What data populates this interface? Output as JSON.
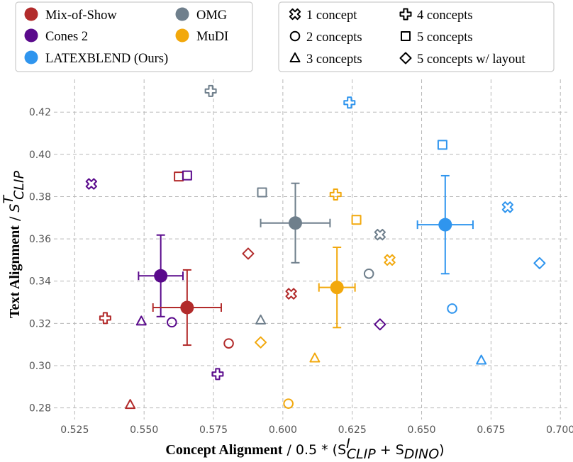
{
  "chart_data": {
    "type": "scatter",
    "xlabel_bold": "Concept Alignment",
    "xlabel_rest": "0.5 * (S",
    "xlabel_sup": "I",
    "xlabel_sub1": "CLIP",
    "xlabel_mid": " + S",
    "xlabel_sub2": "DINO",
    "xlabel_end": ")",
    "ylabel_bold": "Text Alignment",
    "ylabel_rest": "S",
    "ylabel_sup": "T",
    "ylabel_sub": "CLIP",
    "xlim": [
      0.5175,
      0.7025
    ],
    "ylim": [
      0.2745,
      0.4355
    ],
    "xticks": [
      0.525,
      0.55,
      0.575,
      0.6,
      0.625,
      0.65,
      0.675,
      0.7
    ],
    "yticks": [
      0.28,
      0.3,
      0.32,
      0.34,
      0.36,
      0.38,
      0.4,
      0.42
    ],
    "grid": true,
    "methods": [
      {
        "key": "mixofshow",
        "name": "Mix-of-Show",
        "color": "#b22b2b"
      },
      {
        "key": "cones2",
        "name": "Cones 2",
        "color": "#5a0a8c"
      },
      {
        "key": "latexblend",
        "name": "LATEXBLEND",
        "name_suffix": "(Ours)",
        "color": "#2f95ee"
      },
      {
        "key": "omg",
        "name": "OMG",
        "color": "#6f7f8c"
      },
      {
        "key": "mudi",
        "name": "MuDI",
        "color": "#f2a80c"
      }
    ],
    "concept_markers": [
      {
        "marker": "x-cross",
        "label": "1 concept"
      },
      {
        "marker": "plus",
        "label": "4 concepts"
      },
      {
        "marker": "circle",
        "label": "2 concepts"
      },
      {
        "marker": "square",
        "label": "5 concepts"
      },
      {
        "marker": "triangle",
        "label": "3 concepts"
      },
      {
        "marker": "diamond",
        "label": "5 concepts w/ layout"
      }
    ],
    "means": [
      {
        "method": "cones2",
        "x": 0.556,
        "y": 0.3425,
        "xerr": 0.008,
        "yerr": 0.0193
      },
      {
        "method": "mixofshow",
        "x": 0.5655,
        "y": 0.3275,
        "xerr": 0.0123,
        "yerr": 0.0178
      },
      {
        "method": "omg",
        "x": 0.6045,
        "y": 0.3675,
        "xerr": 0.0125,
        "yerr": 0.0188
      },
      {
        "method": "mudi",
        "x": 0.6195,
        "y": 0.337,
        "xerr": 0.0065,
        "yerr": 0.019
      },
      {
        "method": "latexblend",
        "x": 0.6585,
        "y": 0.3667,
        "xerr": 0.01,
        "yerr": 0.0232
      }
    ],
    "points": [
      {
        "method": "mixofshow",
        "marker": "x-cross",
        "x": 0.603,
        "y": 0.334
      },
      {
        "method": "mixofshow",
        "marker": "circle",
        "x": 0.5805,
        "y": 0.3105
      },
      {
        "method": "mixofshow",
        "marker": "triangle",
        "x": 0.545,
        "y": 0.2815
      },
      {
        "method": "mixofshow",
        "marker": "plus",
        "x": 0.536,
        "y": 0.3225
      },
      {
        "method": "mixofshow",
        "marker": "square",
        "x": 0.5625,
        "y": 0.3895
      },
      {
        "method": "mixofshow",
        "marker": "diamond",
        "x": 0.5875,
        "y": 0.353
      },
      {
        "method": "cones2",
        "marker": "x-cross",
        "x": 0.531,
        "y": 0.386
      },
      {
        "method": "cones2",
        "marker": "circle",
        "x": 0.56,
        "y": 0.3205
      },
      {
        "method": "cones2",
        "marker": "triangle",
        "x": 0.549,
        "y": 0.321
      },
      {
        "method": "cones2",
        "marker": "plus",
        "x": 0.5765,
        "y": 0.296
      },
      {
        "method": "cones2",
        "marker": "square",
        "x": 0.5655,
        "y": 0.39
      },
      {
        "method": "cones2",
        "marker": "diamond",
        "x": 0.635,
        "y": 0.3195
      },
      {
        "method": "omg",
        "marker": "x-cross",
        "x": 0.635,
        "y": 0.362
      },
      {
        "method": "omg",
        "marker": "circle",
        "x": 0.631,
        "y": 0.3435
      },
      {
        "method": "omg",
        "marker": "triangle",
        "x": 0.592,
        "y": 0.3215
      },
      {
        "method": "omg",
        "marker": "plus",
        "x": 0.574,
        "y": 0.43
      },
      {
        "method": "omg",
        "marker": "square",
        "x": 0.5925,
        "y": 0.382
      },
      {
        "method": "mudi",
        "marker": "x-cross",
        "x": 0.6385,
        "y": 0.35
      },
      {
        "method": "mudi",
        "marker": "circle",
        "x": 0.602,
        "y": 0.282
      },
      {
        "method": "mudi",
        "marker": "triangle",
        "x": 0.6115,
        "y": 0.3035
      },
      {
        "method": "mudi",
        "marker": "plus",
        "x": 0.619,
        "y": 0.381
      },
      {
        "method": "mudi",
        "marker": "square",
        "x": 0.6265,
        "y": 0.369
      },
      {
        "method": "mudi",
        "marker": "diamond",
        "x": 0.592,
        "y": 0.311
      },
      {
        "method": "latexblend",
        "marker": "x-cross",
        "x": 0.681,
        "y": 0.375
      },
      {
        "method": "latexblend",
        "marker": "circle",
        "x": 0.661,
        "y": 0.327
      },
      {
        "method": "latexblend",
        "marker": "triangle",
        "x": 0.6715,
        "y": 0.3025
      },
      {
        "method": "latexblend",
        "marker": "plus",
        "x": 0.624,
        "y": 0.4245
      },
      {
        "method": "latexblend",
        "marker": "square",
        "x": 0.6575,
        "y": 0.4045
      },
      {
        "method": "latexblend",
        "marker": "diamond",
        "x": 0.6925,
        "y": 0.3485
      }
    ]
  }
}
